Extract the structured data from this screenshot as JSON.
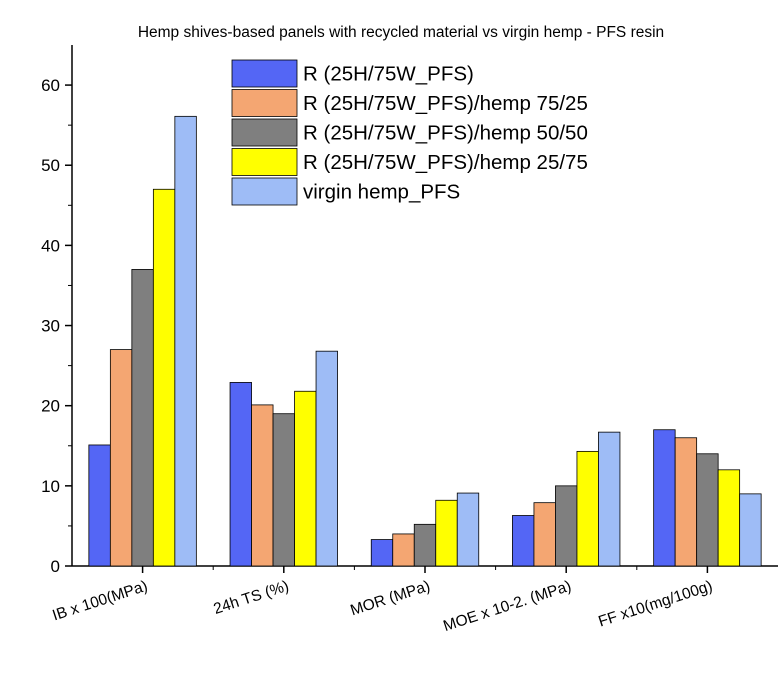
{
  "chart_data": {
    "type": "bar",
    "title": "Hemp shives-based panels with recycled material vs virgin hemp - PFS resin",
    "xlabel": "",
    "ylabel": "",
    "categories": [
      "IB x 100(MPa)",
      "24h TS (%)",
      "MOR (MPa)",
      "MOE x 10-2. (MPa)",
      "FF x10(mg/100g)"
    ],
    "ylim": [
      0,
      65
    ],
    "yticks": [
      0,
      10,
      20,
      30,
      40,
      50,
      60
    ],
    "grid": false,
    "legend_position": "top-center",
    "series": [
      {
        "name": "R (25H/75W_PFS)",
        "color": "#5466f5",
        "values": [
          15.1,
          22.9,
          3.3,
          6.3,
          17.0
        ]
      },
      {
        "name": "R (25H/75W_PFS)/hemp 75/25",
        "color": "#f4a672",
        "values": [
          27.0,
          20.1,
          4.0,
          7.9,
          16.0
        ]
      },
      {
        "name": "R (25H/75W_PFS)/hemp 50/50",
        "color": "#7f7f7f",
        "values": [
          37.0,
          19.0,
          5.2,
          10.0,
          14.0
        ]
      },
      {
        "name": "R (25H/75W_PFS)/hemp 25/75",
        "color": "#ffff00",
        "values": [
          47.0,
          21.8,
          8.2,
          14.3,
          12.0
        ]
      },
      {
        "name": "virgin hemp_PFS",
        "color": "#9ebcf6",
        "values": [
          56.1,
          26.8,
          9.1,
          16.7,
          9.0
        ]
      }
    ]
  }
}
